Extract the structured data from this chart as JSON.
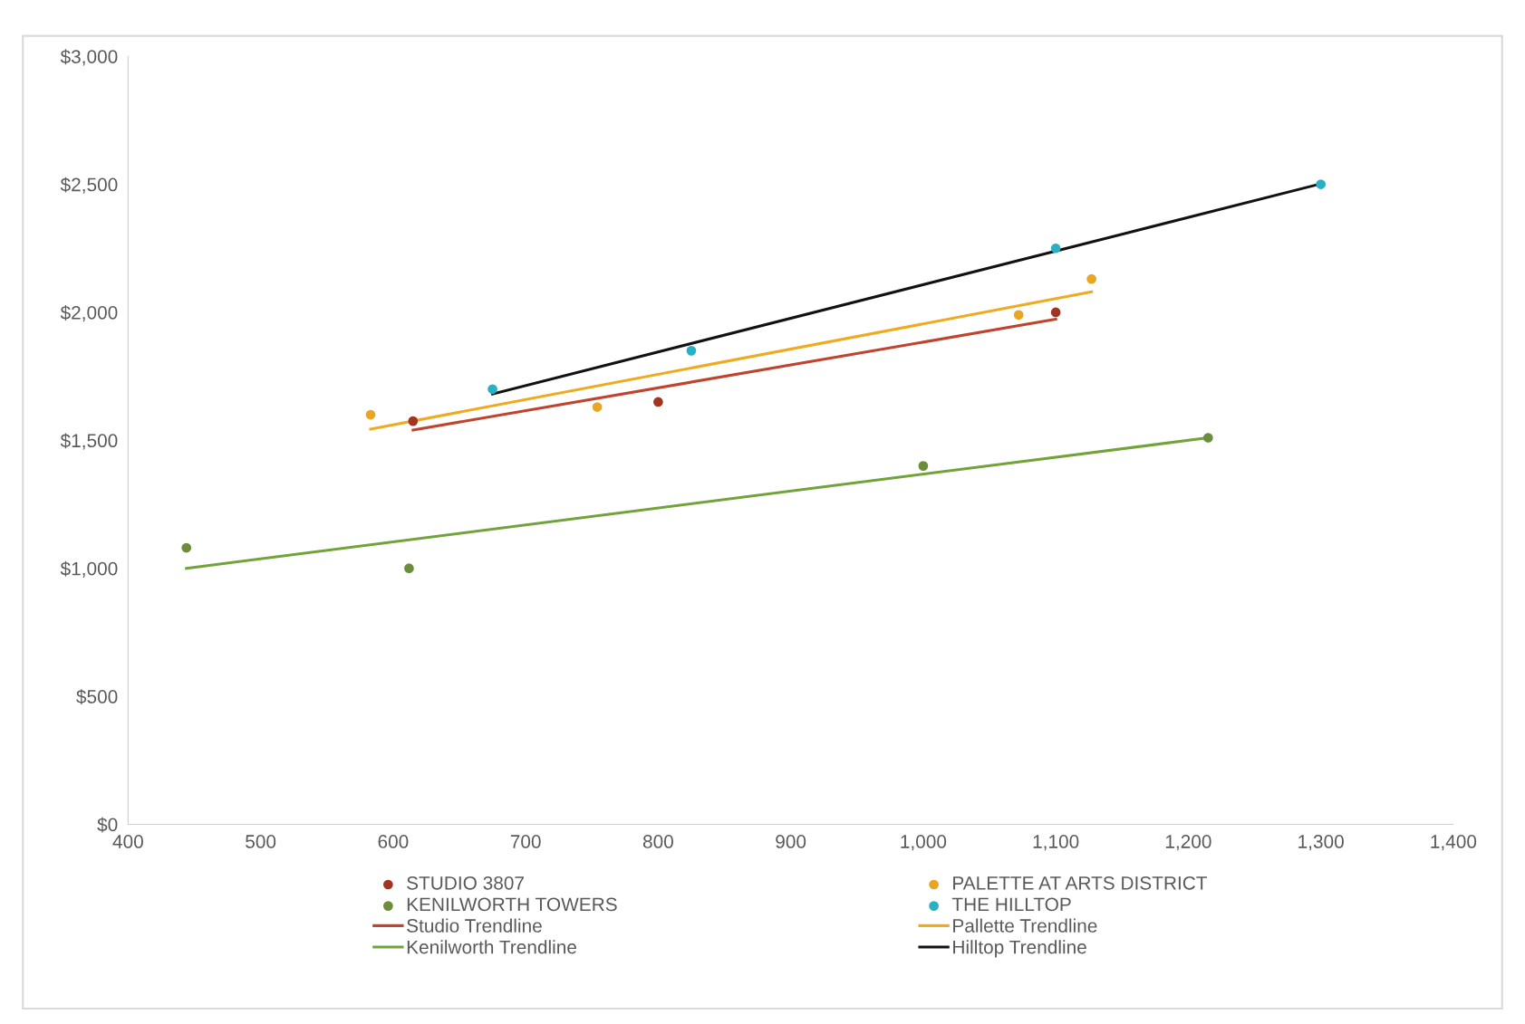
{
  "chart_data": {
    "type": "scatter",
    "legend": "bottom",
    "grid": false,
    "xlim": [
      400,
      1400
    ],
    "xticks": [
      400,
      500,
      600,
      700,
      800,
      900,
      {
        "value": 1000,
        "label": "1,000"
      },
      {
        "value": 1100,
        "label": "1,100"
      },
      {
        "value": 1200,
        "label": "1,200"
      },
      {
        "value": 1300,
        "label": "1,300"
      },
      {
        "value": 1400,
        "label": "1,400"
      }
    ],
    "ylim": [
      0,
      3000
    ],
    "yticks": [
      {
        "value": 0,
        "label": "$0"
      },
      {
        "value": 500,
        "label": "$500"
      },
      {
        "value": 1000,
        "label": "$1,000"
      },
      {
        "value": 1500,
        "label": "$1,500"
      },
      {
        "value": 2000,
        "label": "$2,000"
      },
      {
        "value": 2500,
        "label": "$2,500"
      },
      {
        "value": 3000,
        "label": "$3,000"
      }
    ],
    "series": [
      {
        "name": "STUDIO 3807",
        "marker": "circle",
        "color": "#a3341f",
        "x": [
          615,
          800,
          1100
        ],
        "values": [
          1575,
          1650,
          2000
        ]
      },
      {
        "name": "PALETTE AT ARTS DISTRICT",
        "marker": "circle",
        "color": "#e8a623",
        "x": [
          583,
          754,
          1072,
          1127
        ],
        "values": [
          1600,
          1630,
          1990,
          2130
        ]
      },
      {
        "name": "KENILWORTH TOWERS",
        "marker": "circle",
        "color": "#6b8e3a",
        "x": [
          444,
          612,
          1000,
          1215
        ],
        "values": [
          1080,
          1000,
          1400,
          1510
        ]
      },
      {
        "name": "THE HILLTOP",
        "marker": "circle",
        "color": "#2ab0c5",
        "x": [
          675,
          825,
          1100,
          1300
        ],
        "values": [
          1700,
          1850,
          2250,
          2500
        ]
      },
      {
        "name": "Studio Trendline",
        "type": "line",
        "marker": "none",
        "color": "#c0432d",
        "x": [
          615,
          1100
        ],
        "values": [
          1540,
          1973
        ]
      },
      {
        "name": "Pallette Trendline",
        "type": "line",
        "marker": "none",
        "color": "#f0aa20",
        "x": [
          583,
          1127
        ],
        "values": [
          1544,
          2080
        ]
      },
      {
        "name": "Kenilworth Trendline",
        "type": "line",
        "marker": "none",
        "color": "#72a33a",
        "x": [
          444,
          1215
        ],
        "values": [
          1000,
          1510
        ]
      },
      {
        "name": "Hilltop Trendline",
        "type": "line",
        "marker": "none",
        "color": "#111111",
        "x": [
          675,
          1300
        ],
        "values": [
          1681,
          2502
        ]
      }
    ]
  }
}
